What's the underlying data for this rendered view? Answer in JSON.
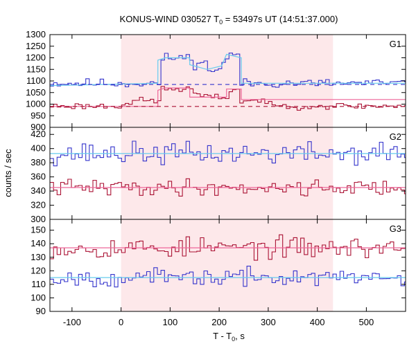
{
  "chart_data": {
    "type": "line",
    "title_main": "KONUS-WIND 030527 T",
    "title_sub": "0",
    "title_rest": " = 53497s UT (14:51:37.000)",
    "xlabel_main": "T - T",
    "xlabel_sub": "0",
    "xlabel_rest": ", s",
    "ylabel": "counts / sec",
    "xlim": [
      -145,
      580
    ],
    "xticks": [
      -100,
      0,
      100,
      200,
      300,
      400,
      500
    ],
    "xtick_labels": [
      "-100",
      "0",
      "100",
      "200",
      "300",
      "400",
      "500"
    ],
    "shaded_interval": [
      0,
      432
    ],
    "colors": {
      "blue": "#3333cc",
      "red": "#aa1133",
      "cyan": "#66ccee",
      "pink": "#ee6699",
      "shade": "#fde8ea",
      "background_line": "#aa1133"
    },
    "panels": [
      {
        "label": "G1",
        "ylim": [
          900,
          1300
        ],
        "yticks": [
          900,
          950,
          1000,
          1050,
          1100,
          1150,
          1200,
          1250,
          1300
        ],
        "ytick_labels": [
          "900",
          "950",
          "1000",
          "1050",
          "1100",
          "1150",
          "1200",
          "1250",
          "1300"
        ],
        "series": [
          {
            "color": "blue",
            "base": 1090,
            "noise": 14,
            "seed": 11,
            "bumps": [
              [
                78,
                90,
                1185
              ],
              [
                90,
                145,
                1200
              ],
              [
                145,
                175,
                1175
              ],
              [
                175,
                205,
                1150
              ],
              [
                205,
                222,
                1185
              ],
              [
                222,
                245,
                1215
              ]
            ]
          },
          {
            "color": "red",
            "base": 992,
            "noise": 10,
            "seed": 23,
            "bumps": [
              [
                0,
                20,
                1005
              ],
              [
                20,
                78,
                1015
              ],
              [
                78,
                145,
                1065
              ],
              [
                145,
                165,
                1045
              ],
              [
                165,
                220,
                1030
              ],
              [
                220,
                245,
                1060
              ],
              [
                245,
                300,
                1015
              ]
            ]
          }
        ],
        "fits": [
          {
            "color": "cyan",
            "points": [
              [
                -145,
                1080
              ],
              [
                75,
                1090
              ],
              [
                75,
                1190
              ],
              [
                90,
                1200
              ],
              [
                140,
                1200
              ],
              [
                140,
                1170
              ],
              [
                175,
                1150
              ],
              [
                205,
                1165
              ],
              [
                215,
                1215
              ],
              [
                245,
                1200
              ],
              [
                245,
                1090
              ],
              [
                580,
                1090
              ]
            ]
          },
          {
            "color": "pink",
            "points": [
              [
                -145,
                990
              ],
              [
                75,
                990
              ],
              [
                75,
                1060
              ],
              [
                90,
                1070
              ],
              [
                140,
                1070
              ],
              [
                140,
                1030
              ],
              [
                215,
                1030
              ],
              [
                215,
                1065
              ],
              [
                245,
                1065
              ],
              [
                245,
                1020
              ],
              [
                580,
                1020
              ]
            ]
          }
        ],
        "dashed": [
          {
            "color": "blue",
            "y": 1085
          },
          {
            "color": "red",
            "y": 990
          }
        ]
      },
      {
        "label": "G2",
        "ylim": [
          300,
          430
        ],
        "yticks": [
          300,
          320,
          340,
          360,
          380,
          400,
          420
        ],
        "ytick_labels": [
          "300",
          "320",
          "340",
          "360",
          "380",
          "400",
          "420"
        ],
        "series": [
          {
            "color": "blue",
            "base": 393,
            "noise": 11,
            "seed": 37,
            "bumps": []
          },
          {
            "color": "red",
            "base": 345,
            "noise": 8,
            "seed": 41,
            "bumps": []
          }
        ],
        "fits": [
          {
            "color": "cyan",
            "points": [
              [
                -145,
                393
              ],
              [
                580,
                393
              ]
            ]
          },
          {
            "color": "pink",
            "points": [
              [
                -145,
                345
              ],
              [
                580,
                345
              ]
            ]
          }
        ],
        "dashed": []
      },
      {
        "label": "G3",
        "ylim": [
          90,
          158
        ],
        "yticks": [
          90,
          100,
          110,
          120,
          130,
          140,
          150
        ],
        "ytick_labels": [
          "90",
          "100",
          "110",
          "120",
          "130",
          "140",
          "150"
        ],
        "series": [
          {
            "color": "red",
            "base": 137,
            "noise": 5.5,
            "seed": 53,
            "bumps": []
          },
          {
            "color": "blue",
            "base": 115,
            "noise": 4.5,
            "seed": 67,
            "bumps": []
          }
        ],
        "fits": [
          {
            "color": "pink",
            "points": [
              [
                -145,
                137
              ],
              [
                580,
                137
              ]
            ]
          },
          {
            "color": "cyan",
            "points": [
              [
                -145,
                115
              ],
              [
                580,
                115
              ]
            ]
          }
        ],
        "dashed": []
      }
    ]
  }
}
